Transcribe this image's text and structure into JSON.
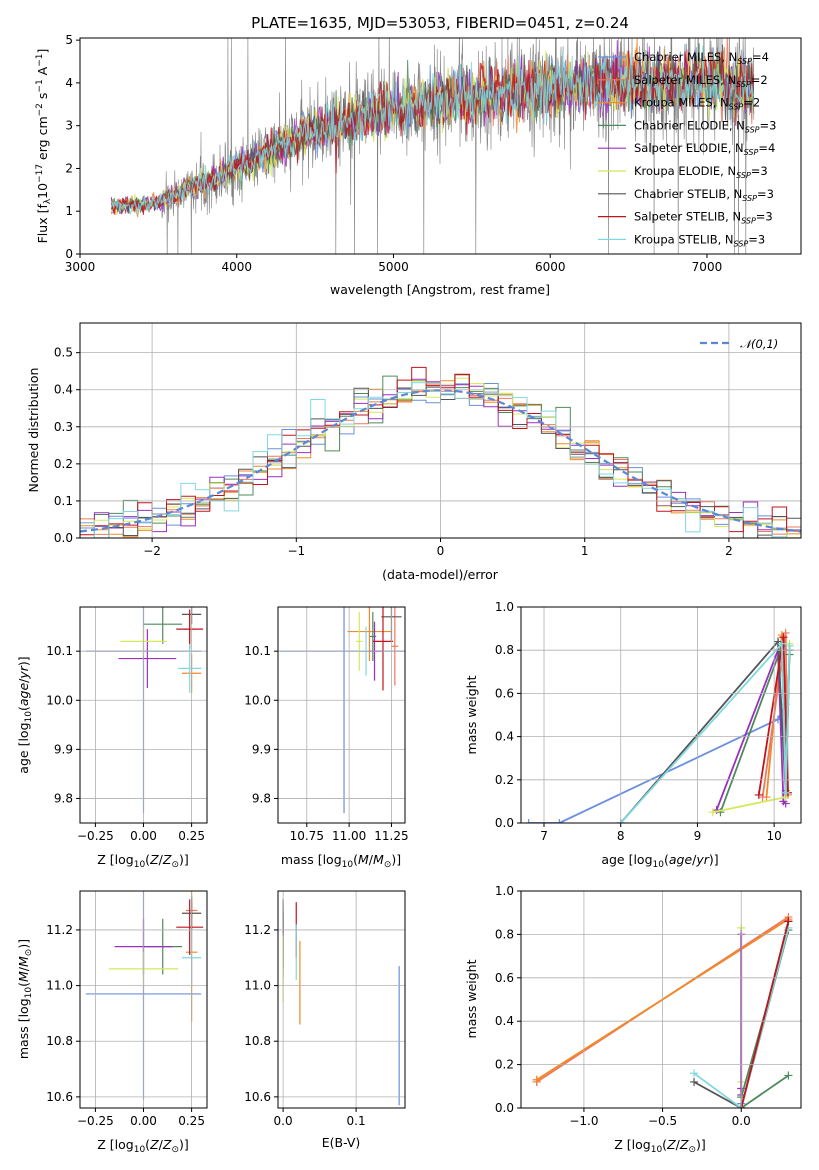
{
  "chart_data": [
    {
      "id": "spectrum",
      "type": "line",
      "title": "PLATE=1635, MJD=53053, FIBERID=0451, z=0.24",
      "xlabel": "wavelength [Angstrom, rest frame]",
      "ylabel": "Flux [f",
      "ylabel_full": "Flux [f_λ 10^-17 erg cm^-2 s^-1 A^-1]",
      "xlim": [
        3000,
        7600
      ],
      "ylim": [
        0,
        5.05
      ],
      "xticks": [
        "3000",
        "4000",
        "5000",
        "6000",
        "7000"
      ],
      "yticks": [
        "0",
        "1",
        "2",
        "3",
        "4",
        "5"
      ],
      "data_trend": {
        "x": [
          3200,
          3500,
          3550,
          4000,
          4500,
          5000,
          5500,
          6000,
          6500,
          7000,
          7300
        ],
        "y": [
          1.1,
          1.2,
          1.3,
          2.0,
          2.9,
          3.4,
          3.7,
          3.9,
          4.0,
          4.0,
          3.9
        ]
      },
      "legend": [
        {
          "text": "Chabrier MILES, N",
          "sub": "SSP",
          "suffix": "=4",
          "color": "#6a8fdc"
        },
        {
          "text": "Salpeter MILES, N",
          "sub": "SSP",
          "suffix": "=2",
          "color": "#f0785a"
        },
        {
          "text": "Kroupa MILES, N",
          "sub": "SSP",
          "suffix": "=2",
          "color": "#f08a28"
        },
        {
          "text": "Chabrier ELODIE, N",
          "sub": "SSP",
          "suffix": "=3",
          "color": "#4f8a5c"
        },
        {
          "text": "Salpeter ELODIE, N",
          "sub": "SSP",
          "suffix": "=4",
          "color": "#9b30c0"
        },
        {
          "text": "Kroupa ELODIE, N",
          "sub": "SSP",
          "suffix": "=3",
          "color": "#d4e85a"
        },
        {
          "text": "Chabrier STELIB, N",
          "sub": "SSP",
          "suffix": "=3",
          "color": "#555555"
        },
        {
          "text": "Salpeter STELIB, N",
          "sub": "SSP",
          "suffix": "=3",
          "color": "#c0141e"
        },
        {
          "text": "Kroupa STELIB, N",
          "sub": "SSP",
          "suffix": "=3",
          "color": "#80d8e0"
        }
      ]
    },
    {
      "id": "residuals",
      "type": "histogram",
      "xlabel": "(data-model)/error",
      "ylabel": "Normed distribution",
      "xlim": [
        -2.5,
        2.5
      ],
      "ylim": [
        0,
        0.58
      ],
      "xticks": [
        "−2",
        "−1",
        "0",
        "1",
        "2"
      ],
      "yticks": [
        "0.0",
        "0.1",
        "0.2",
        "0.3",
        "0.4",
        "0.5"
      ],
      "legend_label": "𝒩(0,1)",
      "gaussian": {
        "mean": 0,
        "sigma": 1
      }
    },
    {
      "id": "age_vs_Z",
      "type": "errorbar",
      "xlabel": "Z [log",
      "ylabel": "age  [log",
      "xlim": [
        -0.33,
        0.33
      ],
      "ylim": [
        9.75,
        10.19
      ],
      "xticks": [
        "−0.25",
        "0.00",
        "0.25"
      ],
      "yticks": [
        "9.8",
        "9.9",
        "10.0",
        "10.1"
      ],
      "points": [
        {
          "x": 0.0,
          "y": 10.1,
          "xe": 0.3,
          "ye": 0.33,
          "c": "#6a8fdc"
        },
        {
          "x": 0.25,
          "y": 10.055,
          "xe": 0.05,
          "ye": 0.04,
          "c": "#f08a28"
        },
        {
          "x": 0.24,
          "y": 10.145,
          "xe": 0.03,
          "ye": 0.03,
          "c": "#f0785a"
        },
        {
          "x": 0.1,
          "y": 10.155,
          "xe": 0.1,
          "ye": 0.04,
          "c": "#4f8a5c"
        },
        {
          "x": 0.02,
          "y": 10.085,
          "xe": 0.15,
          "ye": 0.06,
          "c": "#9b30c0"
        },
        {
          "x": 0.0,
          "y": 10.12,
          "xe": 0.12,
          "ye": 0.03,
          "c": "#d4e85a"
        },
        {
          "x": 0.25,
          "y": 10.175,
          "xe": 0.05,
          "ye": 0.02,
          "c": "#555555"
        },
        {
          "x": 0.24,
          "y": 10.145,
          "xe": 0.07,
          "ye": 0.04,
          "c": "#c0141e"
        },
        {
          "x": 0.24,
          "y": 10.065,
          "xe": 0.06,
          "ye": 0.05,
          "c": "#80d8e0"
        }
      ]
    },
    {
      "id": "age_vs_mass",
      "type": "errorbar",
      "xlabel": "mass [log",
      "ylabel": "",
      "xlim": [
        10.58,
        11.33
      ],
      "ylim": [
        9.75,
        10.19
      ],
      "xticks": [
        "10.75",
        "11.00",
        "11.25"
      ],
      "yticks": [
        "9.8",
        "9.9",
        "10.0",
        "10.1"
      ],
      "points": [
        {
          "x": 10.97,
          "y": 10.1,
          "xe": 0.38,
          "ye": 0.33,
          "c": "#6a8fdc"
        },
        {
          "x": 11.12,
          "y": 10.14,
          "xe": 0.13,
          "ye": 0.06,
          "c": "#f08a28"
        },
        {
          "x": 11.27,
          "y": 10.11,
          "xe": 0.02,
          "ye": 0.08,
          "c": "#f0785a"
        },
        {
          "x": 11.14,
          "y": 10.13,
          "xe": 0.02,
          "ye": 0.05,
          "c": "#4f8a5c"
        },
        {
          "x": 11.15,
          "y": 10.1,
          "xe": 0.05,
          "ye": 0.06,
          "c": "#9b30c0"
        },
        {
          "x": 11.06,
          "y": 10.12,
          "xe": 0.02,
          "ye": 0.06,
          "c": "#d4e85a"
        },
        {
          "x": 11.25,
          "y": 10.17,
          "xe": 0.06,
          "ye": 0.05,
          "c": "#555555"
        },
        {
          "x": 11.2,
          "y": 10.12,
          "xe": 0.06,
          "ye": 0.1,
          "c": "#c0141e"
        },
        {
          "x": 11.1,
          "y": 10.1,
          "xe": 0.02,
          "ye": 0.05,
          "c": "#80d8e0"
        }
      ]
    },
    {
      "id": "weight_vs_age",
      "type": "line",
      "xlabel": "age  [log",
      "ylabel": "mass weight",
      "xlim": [
        6.7,
        10.35
      ],
      "ylim": [
        0,
        1.0
      ],
      "xticks": [
        "7",
        "8",
        "9",
        "10"
      ],
      "yticks": [
        "0.0",
        "0.2",
        "0.4",
        "0.6",
        "0.8",
        "1.0"
      ],
      "series": [
        {
          "c": "#6a8fdc",
          "x": [
            6.8,
            7.2,
            10.05,
            10.15
          ],
          "y": [
            0.0,
            0.0,
            0.48,
            0.55
          ]
        },
        {
          "c": "#f08a28",
          "x": [
            9.9,
            10.1,
            10.15
          ],
          "y": [
            0.12,
            0.87,
            0.13
          ]
        },
        {
          "c": "#f0785a",
          "x": [
            9.85,
            10.15,
            10.18
          ],
          "y": [
            0.12,
            0.88,
            0.13
          ]
        },
        {
          "c": "#4f8a5c",
          "x": [
            9.3,
            10.1,
            10.15,
            10.2
          ],
          "y": [
            0.05,
            0.82,
            0.15,
            0.78
          ]
        },
        {
          "c": "#9b30c0",
          "x": [
            9.25,
            10.05,
            10.12,
            10.15
          ],
          "y": [
            0.06,
            0.8,
            0.1,
            0.09
          ]
        },
        {
          "c": "#d4e85a",
          "x": [
            9.2,
            10.15,
            10.2
          ],
          "y": [
            0.05,
            0.12,
            0.83
          ]
        },
        {
          "c": "#555555",
          "x": [
            8.0,
            10.05,
            10.15,
            10.2
          ],
          "y": [
            0.0,
            0.84,
            0.14,
            0.8
          ]
        },
        {
          "c": "#c0141e",
          "x": [
            9.8,
            10.12,
            10.18
          ],
          "y": [
            0.13,
            0.86,
            0.14
          ]
        },
        {
          "c": "#80d8e0",
          "x": [
            8.0,
            10.1,
            10.15,
            10.2
          ],
          "y": [
            0.0,
            0.83,
            0.14,
            0.82
          ]
        }
      ]
    },
    {
      "id": "mass_vs_Z",
      "type": "errorbar",
      "xlabel": "Z [log",
      "ylabel": "mass [log",
      "xlim": [
        -0.33,
        0.33
      ],
      "ylim": [
        10.56,
        11.34
      ],
      "xticks": [
        "−0.25",
        "0.00",
        "0.25"
      ],
      "yticks": [
        "10.6",
        "10.8",
        "11.0",
        "11.2"
      ],
      "points": [
        {
          "x": 0.0,
          "y": 10.97,
          "xe": 0.3,
          "ye": 0.38,
          "c": "#6a8fdc"
        },
        {
          "x": 0.25,
          "y": 11.12,
          "xe": 0.03,
          "ye": 0.25,
          "c": "#f08a28"
        },
        {
          "x": 0.25,
          "y": 11.27,
          "xe": 0.03,
          "ye": 0.03,
          "c": "#f0785a"
        },
        {
          "x": 0.1,
          "y": 11.14,
          "xe": 0.1,
          "ye": 0.1,
          "c": "#4f8a5c"
        },
        {
          "x": 0.0,
          "y": 11.14,
          "xe": 0.15,
          "ye": 0.1,
          "c": "#9b30c0"
        },
        {
          "x": 0.0,
          "y": 11.06,
          "xe": 0.18,
          "ye": 0.06,
          "c": "#d4e85a"
        },
        {
          "x": 0.25,
          "y": 11.26,
          "xe": 0.05,
          "ye": 0.06,
          "c": "#555555"
        },
        {
          "x": 0.24,
          "y": 11.21,
          "xe": 0.07,
          "ye": 0.1,
          "c": "#c0141e"
        },
        {
          "x": 0.25,
          "y": 11.1,
          "xe": 0.05,
          "ye": 0.1,
          "c": "#80d8e0"
        }
      ]
    },
    {
      "id": "mass_vs_EBV",
      "type": "errorbar",
      "xlabel": "E(B-V)",
      "ylabel": "",
      "xlim": [
        -0.007,
        0.167
      ],
      "ylim": [
        10.56,
        11.34
      ],
      "xticks": [
        "0.0",
        "0.1"
      ],
      "yticks": [
        "10.6",
        "10.8",
        "11.0",
        "11.2"
      ],
      "points": [
        {
          "x": 0.159,
          "y": 10.82,
          "xe": 0.0,
          "ye": 0.25,
          "c": "#6a8fdc"
        },
        {
          "x": 0.023,
          "y": 11.01,
          "xe": 0.0,
          "ye": 0.15,
          "c": "#f08a28"
        },
        {
          "x": 0.0,
          "y": 11.2,
          "xe": 0.0,
          "ye": 0.1,
          "c": "#f0785a"
        },
        {
          "x": 0.0,
          "y": 11.15,
          "xe": 0.0,
          "ye": 0.12,
          "c": "#4f8a5c"
        },
        {
          "x": 0.0,
          "y": 11.16,
          "xe": 0.0,
          "ye": 0.1,
          "c": "#9b30c0"
        },
        {
          "x": 0.0,
          "y": 11.06,
          "xe": 0.0,
          "ye": 0.12,
          "c": "#d4e85a"
        },
        {
          "x": 0.0,
          "y": 11.25,
          "xe": 0.0,
          "ye": 0.06,
          "c": "#555555"
        },
        {
          "x": 0.018,
          "y": 11.2,
          "xe": 0.0,
          "ye": 0.1,
          "c": "#c0141e"
        },
        {
          "x": 0.018,
          "y": 11.12,
          "xe": 0.0,
          "ye": 0.1,
          "c": "#80d8e0"
        }
      ]
    },
    {
      "id": "weight_vs_Z",
      "type": "line",
      "xlabel": "Z [log",
      "ylabel": "mass weight",
      "xlim": [
        -1.4,
        0.38
      ],
      "ylim": [
        0,
        1.0
      ],
      "xticks": [
        "−1.0",
        "−0.5",
        "0.0"
      ],
      "yticks": [
        "0.0",
        "0.2",
        "0.4",
        "0.6",
        "0.8",
        "1.0"
      ],
      "series": [
        {
          "c": "#f0785a",
          "x": [
            -1.3,
            0.3,
            -1.3
          ],
          "y": [
            0.12,
            0.88,
            0.12
          ]
        },
        {
          "c": "#f08a28",
          "x": [
            -1.3,
            0.3,
            -1.3
          ],
          "y": [
            0.13,
            0.87,
            0.13
          ]
        },
        {
          "c": "#d4e85a",
          "x": [
            0.0,
            0.0,
            0.0
          ],
          "y": [
            0.05,
            0.83,
            0.12
          ]
        },
        {
          "c": "#9b30c0",
          "x": [
            0.0,
            0.0,
            0.0
          ],
          "y": [
            0.06,
            0.8,
            0.09
          ]
        },
        {
          "c": "#4f8a5c",
          "x": [
            0.0,
            0.3,
            0.0,
            0.3
          ],
          "y": [
            0.05,
            0.82,
            0.0,
            0.15
          ]
        },
        {
          "c": "#555555",
          "x": [
            -0.3,
            0.0,
            0.3
          ],
          "y": [
            0.12,
            0.0,
            0.86
          ]
        },
        {
          "c": "#80d8e0",
          "x": [
            -0.3,
            0.0,
            0.3
          ],
          "y": [
            0.16,
            0.0,
            0.83
          ]
        },
        {
          "c": "#6a8fdc",
          "x": [
            0.0,
            0.0
          ],
          "y": [
            0.0,
            0.02
          ]
        },
        {
          "c": "#c0141e",
          "x": [
            0.0,
            0.3
          ],
          "y": [
            0.0,
            0.86
          ]
        }
      ]
    }
  ]
}
